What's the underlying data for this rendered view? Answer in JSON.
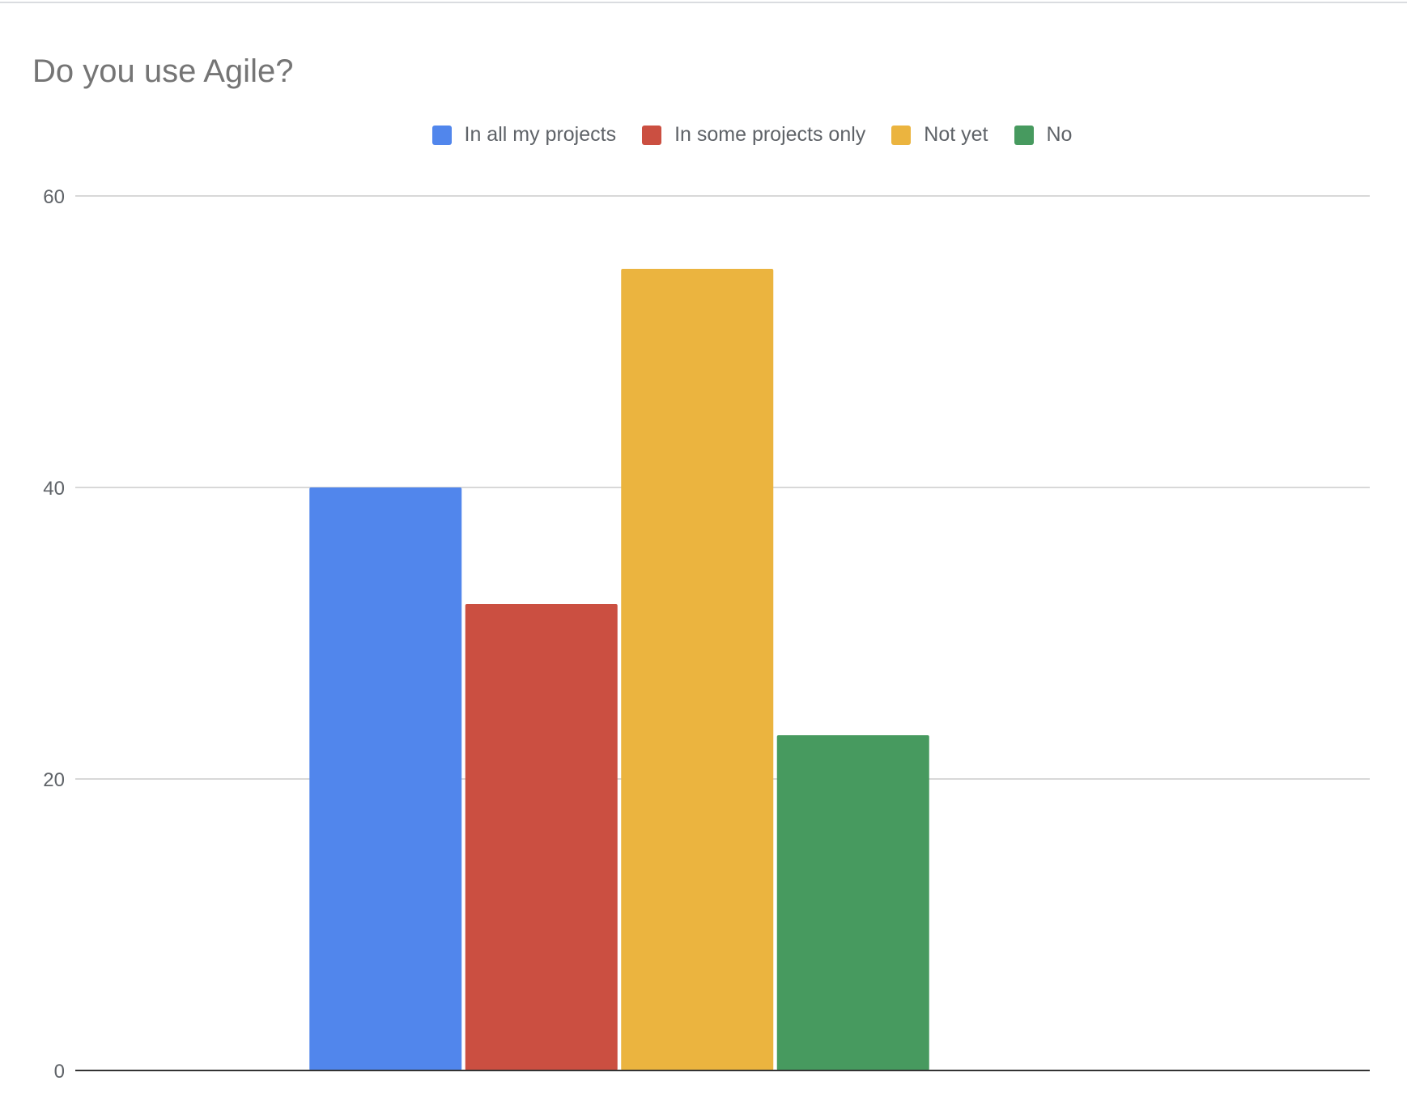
{
  "chart_data": {
    "type": "bar",
    "title": "Do you use Agile?",
    "categories": [
      ""
    ],
    "series": [
      {
        "name": "In all my projects",
        "values": [
          40
        ],
        "color": "#5186ec"
      },
      {
        "name": "In some projects only",
        "values": [
          32
        ],
        "color": "#cb4f41"
      },
      {
        "name": "Not yet",
        "values": [
          55
        ],
        "color": "#ebb43f"
      },
      {
        "name": "No",
        "values": [
          23
        ],
        "color": "#479a5f"
      }
    ],
    "xlabel": "",
    "ylabel": "",
    "ylim": [
      0,
      60
    ],
    "yticks": [
      "0",
      "20",
      "40",
      "60"
    ],
    "grid": true,
    "legend_position": "top"
  }
}
